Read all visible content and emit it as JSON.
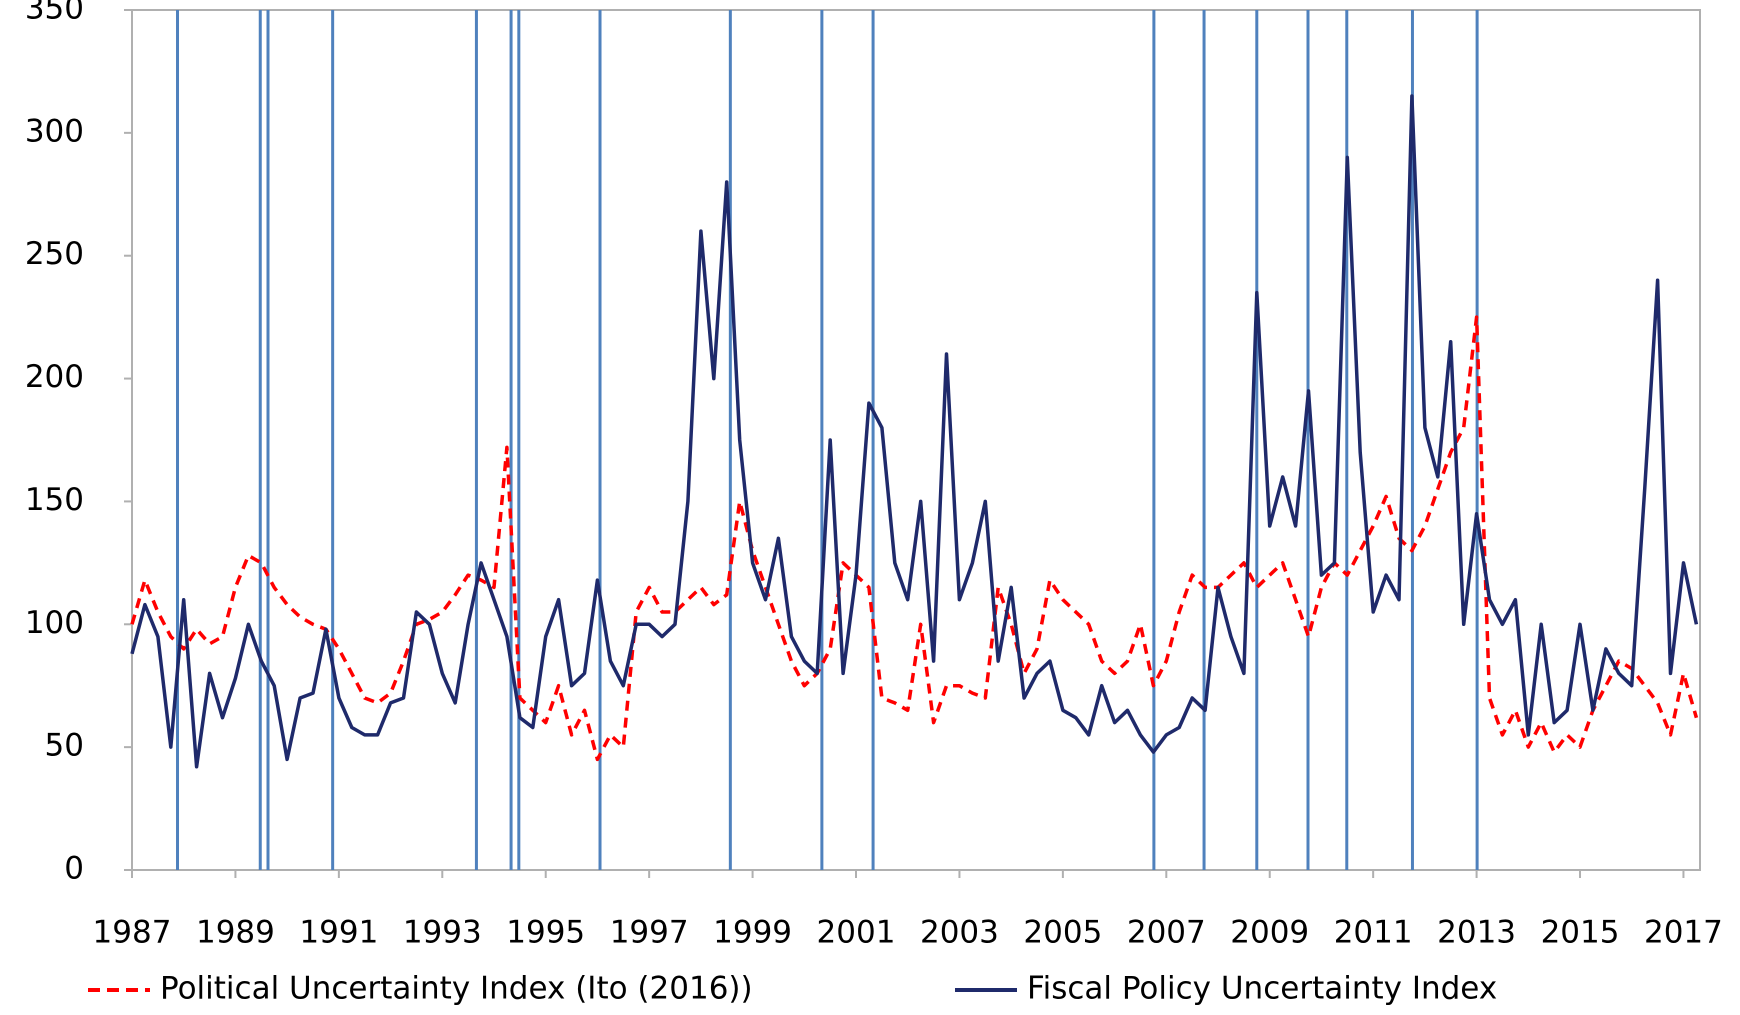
{
  "chart_data": {
    "type": "line",
    "x": [
      1987,
      1987.25,
      1987.5,
      1987.75,
      1988,
      1988.25,
      1988.5,
      1988.75,
      1989,
      1989.25,
      1989.5,
      1989.75,
      1990,
      1990.25,
      1990.5,
      1990.75,
      1991,
      1991.25,
      1991.5,
      1991.75,
      1992,
      1992.25,
      1992.5,
      1992.75,
      1993,
      1993.25,
      1993.5,
      1993.75,
      1994,
      1994.25,
      1994.5,
      1994.75,
      1995,
      1995.25,
      1995.5,
      1995.75,
      1996,
      1996.25,
      1996.5,
      1996.75,
      1997,
      1997.25,
      1997.5,
      1997.75,
      1998,
      1998.25,
      1998.5,
      1998.75,
      1999,
      1999.25,
      1999.5,
      1999.75,
      2000,
      2000.25,
      2000.5,
      2000.75,
      2001,
      2001.25,
      2001.5,
      2001.75,
      2002,
      2002.25,
      2002.5,
      2002.75,
      2003,
      2003.25,
      2003.5,
      2003.75,
      2004,
      2004.25,
      2004.5,
      2004.75,
      2005,
      2005.25,
      2005.5,
      2005.75,
      2006,
      2006.25,
      2006.5,
      2006.75,
      2007,
      2007.25,
      2007.5,
      2007.75,
      2008,
      2008.25,
      2008.5,
      2008.75,
      2009,
      2009.25,
      2009.5,
      2009.75,
      2010,
      2010.25,
      2010.5,
      2010.75,
      2011,
      2011.25,
      2011.5,
      2011.75,
      2012,
      2012.25,
      2012.5,
      2012.75,
      2013,
      2013.25,
      2013.5,
      2013.75,
      2014,
      2014.25,
      2014.5,
      2014.75,
      2015,
      2015.25,
      2015.5,
      2015.75,
      2016,
      2016.25,
      2016.5,
      2016.75,
      2017,
      2017.25
    ],
    "series": [
      {
        "name": "Political Uncertainty Index (Ito (2016))",
        "color": "#ff0000",
        "dashed": true,
        "values": [
          100,
          118,
          105,
          95,
          90,
          98,
          92,
          95,
          115,
          128,
          125,
          115,
          108,
          103,
          100,
          98,
          90,
          80,
          70,
          68,
          72,
          85,
          100,
          102,
          105,
          112,
          120,
          118,
          115,
          172,
          70,
          65,
          60,
          75,
          55,
          65,
          45,
          55,
          50,
          105,
          115,
          105,
          105,
          110,
          115,
          108,
          112,
          150,
          130,
          115,
          100,
          85,
          75,
          80,
          90,
          125,
          120,
          115,
          70,
          68,
          65,
          100,
          60,
          75,
          75,
          72,
          70,
          115,
          100,
          80,
          90,
          118,
          110,
          105,
          100,
          85,
          80,
          85,
          100,
          75,
          85,
          105,
          120,
          115,
          115,
          120,
          125,
          115,
          120,
          125,
          110,
          95,
          115,
          125,
          120,
          130,
          140,
          152,
          135,
          130,
          140,
          155,
          170,
          180,
          225,
          70,
          55,
          65,
          50,
          60,
          48,
          55,
          50,
          65,
          75,
          85,
          82,
          75,
          68,
          55,
          80,
          62
        ]
      },
      {
        "name": "Fiscal Policy Uncertainty Index",
        "color": "#1f2a6b",
        "dashed": false,
        "values": [
          88,
          108,
          95,
          50,
          110,
          42,
          80,
          62,
          78,
          100,
          85,
          75,
          45,
          70,
          72,
          98,
          70,
          58,
          55,
          55,
          68,
          70,
          105,
          100,
          80,
          68,
          100,
          125,
          110,
          95,
          62,
          58,
          95,
          110,
          75,
          80,
          118,
          85,
          75,
          100,
          100,
          95,
          100,
          150,
          260,
          200,
          280,
          175,
          125,
          110,
          135,
          95,
          85,
          80,
          175,
          80,
          120,
          190,
          180,
          125,
          110,
          150,
          85,
          210,
          110,
          125,
          150,
          85,
          115,
          70,
          80,
          85,
          65,
          62,
          55,
          75,
          60,
          65,
          55,
          48,
          55,
          58,
          70,
          65,
          115,
          95,
          80,
          235,
          140,
          160,
          140,
          195,
          120,
          125,
          290,
          170,
          105,
          120,
          110,
          315,
          180,
          160,
          215,
          100,
          145,
          110,
          100,
          110,
          55,
          100,
          60,
          65,
          100,
          65,
          90,
          80,
          75,
          155,
          240,
          80,
          125,
          100
        ]
      }
    ],
    "event_lines": [
      1987.88,
      1989.48,
      1989.63,
      1990.88,
      1993.66,
      1994.33,
      1994.48,
      1996.05,
      1998.57,
      2000.34,
      2001.33,
      2006.76,
      2007.73,
      2008.75,
      2009.74,
      2010.49,
      2011.76,
      2013.01
    ],
    "event_color": "#4f81bd",
    "xlim": [
      1987,
      2017.32
    ],
    "xticks": [
      1987,
      1989,
      1991,
      1993,
      1995,
      1997,
      1999,
      2001,
      2003,
      2005,
      2007,
      2009,
      2011,
      2013,
      2015,
      2017
    ],
    "ylim": [
      0,
      350
    ],
    "yticks": [
      0,
      50,
      100,
      150,
      200,
      250,
      300,
      350
    ],
    "grid": false,
    "legend": "bottom"
  }
}
